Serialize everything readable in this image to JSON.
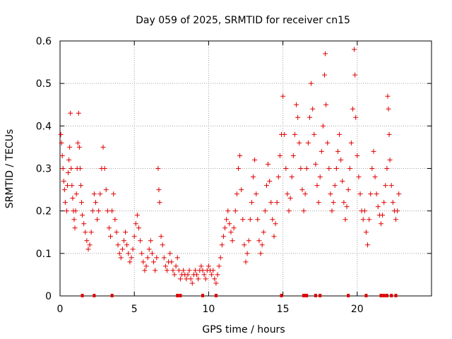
{
  "chart_data": {
    "type": "scatter",
    "title": "Day 059 of 2025, SRMTID for receiver cn15",
    "xlabel": "GPS time / hours",
    "ylabel": "SRMTID / TECUs",
    "xlim": [
      0,
      25
    ],
    "ylim": [
      0,
      0.6
    ],
    "x_ticks": [
      0,
      5,
      10,
      15,
      20
    ],
    "y_ticks": [
      0,
      0.1,
      0.2,
      0.3,
      0.4,
      0.5,
      0.6
    ],
    "x_tick_labels": [
      "0",
      "5",
      "10",
      "15",
      "20"
    ],
    "y_tick_labels": [
      "0",
      "0.1",
      "0.2",
      "0.3",
      "0.4",
      "0.5",
      "0.6"
    ],
    "grid": true,
    "marker": "+",
    "color": "#e00000",
    "series": [
      {
        "name": "SRMTID",
        "points": [
          [
            0.05,
            0.38
          ],
          [
            0.1,
            0.36
          ],
          [
            0.15,
            0.33
          ],
          [
            0.2,
            0.3
          ],
          [
            0.25,
            0.27
          ],
          [
            0.3,
            0.25
          ],
          [
            0.35,
            0.22
          ],
          [
            0.45,
            0.2
          ],
          [
            0.5,
            0.26
          ],
          [
            0.55,
            0.29
          ],
          [
            0.6,
            0.32
          ],
          [
            0.65,
            0.35
          ],
          [
            0.7,
            0.43
          ],
          [
            0.75,
            0.3
          ],
          [
            0.8,
            0.26
          ],
          [
            0.85,
            0.23
          ],
          [
            0.9,
            0.2
          ],
          [
            0.95,
            0.18
          ],
          [
            1.0,
            0.16
          ],
          [
            1.05,
            0.2
          ],
          [
            1.1,
            0.24
          ],
          [
            1.15,
            0.3
          ],
          [
            1.2,
            0.36
          ],
          [
            1.25,
            0.43
          ],
          [
            1.3,
            0.35
          ],
          [
            1.35,
            0.3
          ],
          [
            1.4,
            0.26
          ],
          [
            1.45,
            0.22
          ],
          [
            1.5,
            0.19
          ],
          [
            1.6,
            0.17
          ],
          [
            1.7,
            0.15
          ],
          [
            1.8,
            0.13
          ],
          [
            1.9,
            0.11
          ],
          [
            2.0,
            0.12
          ],
          [
            2.1,
            0.15
          ],
          [
            2.2,
            0.2
          ],
          [
            2.3,
            0.24
          ],
          [
            2.4,
            0.22
          ],
          [
            2.5,
            0.18
          ],
          [
            2.6,
            0.2
          ],
          [
            2.7,
            0.24
          ],
          [
            2.8,
            0.3
          ],
          [
            2.9,
            0.35
          ],
          [
            3.0,
            0.3
          ],
          [
            3.1,
            0.25
          ],
          [
            3.2,
            0.2
          ],
          [
            3.3,
            0.16
          ],
          [
            3.4,
            0.14
          ],
          [
            3.5,
            0.2
          ],
          [
            3.6,
            0.24
          ],
          [
            3.7,
            0.18
          ],
          [
            3.8,
            0.15
          ],
          [
            3.9,
            0.12
          ],
          [
            4.0,
            0.1
          ],
          [
            4.1,
            0.09
          ],
          [
            4.2,
            0.11
          ],
          [
            4.3,
            0.13
          ],
          [
            4.4,
            0.15
          ],
          [
            4.5,
            0.12
          ],
          [
            4.6,
            0.1
          ],
          [
            4.7,
            0.08
          ],
          [
            4.8,
            0.09
          ],
          [
            4.9,
            0.11
          ],
          [
            5.0,
            0.14
          ],
          [
            5.1,
            0.17
          ],
          [
            5.2,
            0.19
          ],
          [
            5.3,
            0.16
          ],
          [
            5.4,
            0.13
          ],
          [
            5.5,
            0.1
          ],
          [
            5.6,
            0.08
          ],
          [
            5.7,
            0.06
          ],
          [
            5.8,
            0.07
          ],
          [
            5.9,
            0.09
          ],
          [
            6.0,
            0.11
          ],
          [
            6.1,
            0.13
          ],
          [
            6.2,
            0.1
          ],
          [
            6.3,
            0.08
          ],
          [
            6.4,
            0.06
          ],
          [
            6.5,
            0.09
          ],
          [
            6.6,
            0.3
          ],
          [
            6.65,
            0.25
          ],
          [
            6.7,
            0.22
          ],
          [
            6.8,
            0.14
          ],
          [
            6.9,
            0.12
          ],
          [
            7.0,
            0.09
          ],
          [
            7.1,
            0.07
          ],
          [
            7.2,
            0.06
          ],
          [
            7.3,
            0.08
          ],
          [
            7.4,
            0.1
          ],
          [
            7.5,
            0.08
          ],
          [
            7.6,
            0.06
          ],
          [
            7.7,
            0.05
          ],
          [
            7.8,
            0.07
          ],
          [
            7.9,
            0.09
          ],
          [
            8.0,
            0.06
          ],
          [
            8.1,
            0.04
          ],
          [
            8.2,
            0.05
          ],
          [
            8.3,
            0.06
          ],
          [
            8.4,
            0.05
          ],
          [
            8.5,
            0.04
          ],
          [
            8.6,
            0.05
          ],
          [
            8.7,
            0.06
          ],
          [
            8.8,
            0.04
          ],
          [
            8.9,
            0.03
          ],
          [
            9.0,
            0.05
          ],
          [
            9.1,
            0.06
          ],
          [
            9.2,
            0.05
          ],
          [
            9.3,
            0.04
          ],
          [
            9.4,
            0.06
          ],
          [
            9.5,
            0.07
          ],
          [
            9.6,
            0.06
          ],
          [
            9.7,
            0.05
          ],
          [
            9.8,
            0.04
          ],
          [
            9.9,
            0.06
          ],
          [
            10.0,
            0.07
          ],
          [
            10.1,
            0.06
          ],
          [
            10.2,
            0.05
          ],
          [
            10.3,
            0.06
          ],
          [
            10.4,
            0.04
          ],
          [
            10.5,
            0.03
          ],
          [
            10.6,
            0.05
          ],
          [
            10.7,
            0.07
          ],
          [
            10.8,
            0.09
          ],
          [
            10.9,
            0.12
          ],
          [
            11.0,
            0.14
          ],
          [
            11.1,
            0.16
          ],
          [
            11.2,
            0.18
          ],
          [
            11.3,
            0.2
          ],
          [
            11.4,
            0.17
          ],
          [
            11.5,
            0.15
          ],
          [
            11.6,
            0.13
          ],
          [
            11.7,
            0.16
          ],
          [
            11.8,
            0.2
          ],
          [
            11.9,
            0.24
          ],
          [
            12.0,
            0.3
          ],
          [
            12.1,
            0.33
          ],
          [
            12.2,
            0.25
          ],
          [
            12.3,
            0.18
          ],
          [
            12.4,
            0.12
          ],
          [
            12.5,
            0.08
          ],
          [
            12.6,
            0.1
          ],
          [
            12.7,
            0.13
          ],
          [
            12.8,
            0.18
          ],
          [
            12.9,
            0.22
          ],
          [
            13.0,
            0.28
          ],
          [
            13.1,
            0.32
          ],
          [
            13.2,
            0.24
          ],
          [
            13.3,
            0.18
          ],
          [
            13.4,
            0.13
          ],
          [
            13.5,
            0.1
          ],
          [
            13.6,
            0.12
          ],
          [
            13.7,
            0.15
          ],
          [
            13.8,
            0.2
          ],
          [
            13.9,
            0.26
          ],
          [
            14.0,
            0.31
          ],
          [
            14.1,
            0.27
          ],
          [
            14.2,
            0.22
          ],
          [
            14.3,
            0.18
          ],
          [
            14.4,
            0.14
          ],
          [
            14.5,
            0.17
          ],
          [
            14.6,
            0.22
          ],
          [
            14.7,
            0.28
          ],
          [
            14.8,
            0.33
          ],
          [
            14.9,
            0.38
          ],
          [
            15.0,
            0.47
          ],
          [
            15.1,
            0.38
          ],
          [
            15.2,
            0.3
          ],
          [
            15.3,
            0.24
          ],
          [
            15.4,
            0.2
          ],
          [
            15.5,
            0.23
          ],
          [
            15.6,
            0.28
          ],
          [
            15.7,
            0.33
          ],
          [
            15.8,
            0.38
          ],
          [
            15.9,
            0.45
          ],
          [
            16.0,
            0.42
          ],
          [
            16.1,
            0.36
          ],
          [
            16.2,
            0.3
          ],
          [
            16.3,
            0.25
          ],
          [
            16.4,
            0.2
          ],
          [
            16.5,
            0.24
          ],
          [
            16.6,
            0.3
          ],
          [
            16.7,
            0.36
          ],
          [
            16.8,
            0.42
          ],
          [
            16.9,
            0.5
          ],
          [
            17.0,
            0.44
          ],
          [
            17.1,
            0.38
          ],
          [
            17.2,
            0.31
          ],
          [
            17.3,
            0.26
          ],
          [
            17.4,
            0.22
          ],
          [
            17.5,
            0.28
          ],
          [
            17.6,
            0.34
          ],
          [
            17.7,
            0.4
          ],
          [
            17.8,
            0.52
          ],
          [
            17.85,
            0.57
          ],
          [
            17.9,
            0.45
          ],
          [
            18.0,
            0.36
          ],
          [
            18.1,
            0.3
          ],
          [
            18.2,
            0.24
          ],
          [
            18.3,
            0.2
          ],
          [
            18.4,
            0.22
          ],
          [
            18.5,
            0.26
          ],
          [
            18.6,
            0.3
          ],
          [
            18.7,
            0.34
          ],
          [
            18.8,
            0.38
          ],
          [
            18.9,
            0.32
          ],
          [
            19.0,
            0.27
          ],
          [
            19.1,
            0.22
          ],
          [
            19.2,
            0.18
          ],
          [
            19.3,
            0.21
          ],
          [
            19.4,
            0.25
          ],
          [
            19.5,
            0.3
          ],
          [
            19.6,
            0.36
          ],
          [
            19.7,
            0.44
          ],
          [
            19.8,
            0.58
          ],
          [
            19.85,
            0.52
          ],
          [
            19.9,
            0.42
          ],
          [
            20.0,
            0.33
          ],
          [
            20.1,
            0.28
          ],
          [
            20.2,
            0.24
          ],
          [
            20.3,
            0.2
          ],
          [
            20.4,
            0.18
          ],
          [
            20.5,
            0.2
          ],
          [
            20.6,
            0.15
          ],
          [
            20.7,
            0.12
          ],
          [
            20.8,
            0.18
          ],
          [
            20.9,
            0.24
          ],
          [
            21.0,
            0.3
          ],
          [
            21.1,
            0.34
          ],
          [
            21.2,
            0.28
          ],
          [
            21.3,
            0.24
          ],
          [
            21.4,
            0.21
          ],
          [
            21.5,
            0.19
          ],
          [
            21.6,
            0.17
          ],
          [
            21.7,
            0.19
          ],
          [
            21.8,
            0.22
          ],
          [
            21.9,
            0.26
          ],
          [
            22.0,
            0.3
          ],
          [
            22.05,
            0.47
          ],
          [
            22.1,
            0.44
          ],
          [
            22.15,
            0.38
          ],
          [
            22.2,
            0.32
          ],
          [
            22.3,
            0.26
          ],
          [
            22.4,
            0.22
          ],
          [
            22.5,
            0.2
          ],
          [
            22.6,
            0.18
          ],
          [
            22.7,
            0.2
          ],
          [
            22.8,
            0.24
          ]
        ]
      }
    ],
    "baseline_markers": {
      "description": "points at zero along the x axis",
      "x": [
        1.5,
        2.3,
        3.5,
        7.9,
        8.1,
        9.6,
        10.5,
        14.9,
        16.4,
        16.5,
        16.6,
        17.2,
        17.5,
        19.4,
        20.6,
        21.6,
        21.8,
        22.0,
        22.3,
        22.6
      ],
      "y": 0
    }
  }
}
